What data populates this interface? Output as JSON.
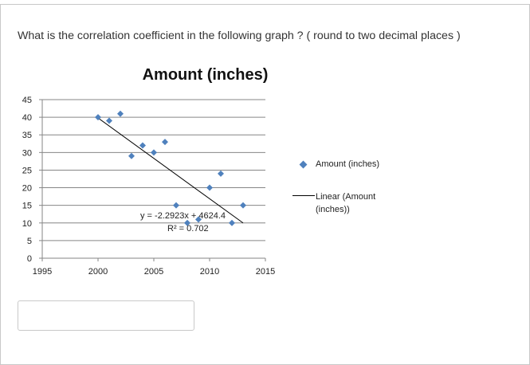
{
  "question": {
    "text": "What is the correlation coefficient in the following graph ? ( round to two decimal places )"
  },
  "answer": {
    "value": ""
  },
  "chart_data": {
    "type": "scatter",
    "title": "Amount (inches)",
    "xlabel": "",
    "ylabel": "",
    "xlim": [
      1995,
      2015
    ],
    "ylim": [
      0,
      45
    ],
    "x_ticks": [
      1995,
      2000,
      2005,
      2010,
      2015
    ],
    "y_ticks": [
      0,
      5,
      10,
      15,
      20,
      25,
      30,
      35,
      40,
      45
    ],
    "grid": "horizontal",
    "legend_position": "right",
    "series": [
      {
        "name": "Amount (inches)",
        "marker": "diamond",
        "color": "#4f81bd",
        "points": [
          {
            "x": 2000,
            "y": 40
          },
          {
            "x": 2001,
            "y": 39
          },
          {
            "x": 2002,
            "y": 41
          },
          {
            "x": 2003,
            "y": 29
          },
          {
            "x": 2004,
            "y": 32
          },
          {
            "x": 2005,
            "y": 30
          },
          {
            "x": 2006,
            "y": 33
          },
          {
            "x": 2007,
            "y": 15
          },
          {
            "x": 2008,
            "y": 10
          },
          {
            "x": 2009,
            "y": 11
          },
          {
            "x": 2010,
            "y": 20
          },
          {
            "x": 2011,
            "y": 24
          },
          {
            "x": 2012,
            "y": 10
          },
          {
            "x": 2013,
            "y": 15
          }
        ]
      }
    ],
    "trendline": {
      "name": "Linear (Amount (inches))",
      "type": "linear",
      "color": "#000000",
      "slope": -2.2923,
      "intercept": 4624.4,
      "x_range": [
        2000,
        2013
      ],
      "equation_label": "y = -2.2923x + 4624.4",
      "r2_label": "R² = 0.702"
    }
  }
}
